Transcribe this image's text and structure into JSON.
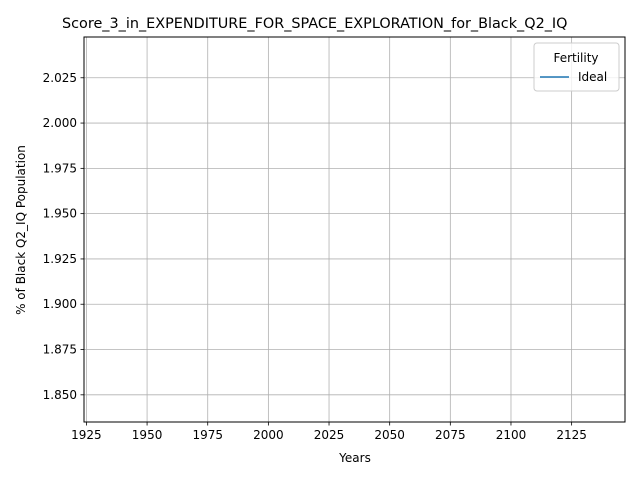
{
  "chart_data": {
    "type": "line",
    "title": "Score_3_in_EXPENDITURE_FOR_SPACE_EXPLORATION_for_Black_Q2_IQ",
    "xlabel": "Years",
    "ylabel": "% of Black Q2_IQ Population",
    "xlim": [
      1924,
      2147
    ],
    "ylim": [
      1.835,
      2.0475
    ],
    "xticks": [
      1925,
      1950,
      1975,
      2000,
      2025,
      2050,
      2075,
      2100,
      2125
    ],
    "yticks": [
      1.85,
      1.875,
      1.9,
      1.925,
      1.95,
      1.975,
      2.0,
      2.025
    ],
    "xtick_labels": [
      "1925",
      "1950",
      "1975",
      "2000",
      "2025",
      "2050",
      "2075",
      "2100",
      "2125"
    ],
    "ytick_labels": [
      "1.850",
      "1.875",
      "1.900",
      "1.925",
      "1.950",
      "1.975",
      "2.000",
      "2.025"
    ],
    "grid": true,
    "legend": {
      "title": "Fertility",
      "placement": "top-right"
    },
    "series": [
      {
        "name": "Ideal",
        "color": "#1f77b4",
        "x": [],
        "y": []
      }
    ]
  }
}
